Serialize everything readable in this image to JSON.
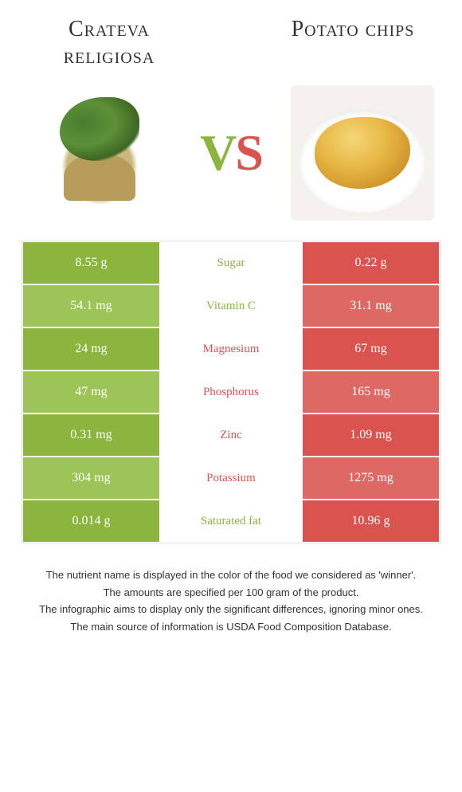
{
  "header": {
    "left_title": "Crateva religiosa",
    "right_title": "Potato chips"
  },
  "vs": {
    "v": "V",
    "s": "S"
  },
  "colors": {
    "green": "#8bb53d",
    "green_light": "#9dc456",
    "red": "#d9534f",
    "red_light": "#de6864",
    "white": "#ffffff",
    "text": "#333333"
  },
  "table": {
    "rows": [
      {
        "left": "8.55 g",
        "label": "Sugar",
        "right": "0.22 g",
        "winner": "left"
      },
      {
        "left": "54.1 mg",
        "label": "Vitamin C",
        "right": "31.1 mg",
        "winner": "left"
      },
      {
        "left": "24 mg",
        "label": "Magnesium",
        "right": "67 mg",
        "winner": "right"
      },
      {
        "left": "47 mg",
        "label": "Phosphorus",
        "right": "165 mg",
        "winner": "right"
      },
      {
        "left": "0.31 mg",
        "label": "Zinc",
        "right": "1.09 mg",
        "winner": "right"
      },
      {
        "left": "304 mg",
        "label": "Potassium",
        "right": "1275 mg",
        "winner": "right"
      },
      {
        "left": "0.014 g",
        "label": "Saturated fat",
        "right": "10.96 g",
        "winner": "left"
      }
    ]
  },
  "footnotes": [
    "The nutrient name is displayed in the color of the food we considered as 'winner'.",
    "The amounts are specified per 100 gram of the product.",
    "The infographic aims to display only the significant differences, ignoring minor ones.",
    "The main source of information is USDA Food Composition Database."
  ]
}
